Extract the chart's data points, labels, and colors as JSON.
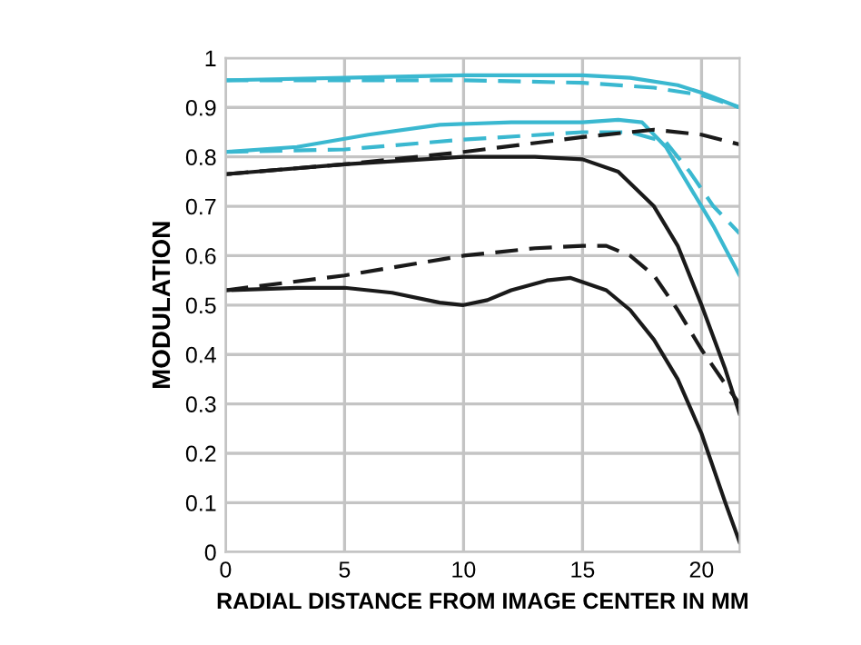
{
  "chart_data": {
    "type": "line",
    "xlabel": "RADIAL DISTANCE FROM IMAGE CENTER IN MM",
    "ylabel": "MODULATION",
    "xlim": [
      0,
      21.6
    ],
    "ylim": [
      0,
      1
    ],
    "xticks": [
      0,
      5,
      10,
      15,
      20
    ],
    "yticks": [
      0,
      0.1,
      0.2,
      0.3,
      0.4,
      0.5,
      0.6,
      0.7,
      0.8,
      0.9,
      1
    ],
    "grid": true,
    "marker": "none",
    "series": [
      {
        "color": "#3ab8d0",
        "line_style": "solid",
        "x": [
          0,
          5,
          10,
          15,
          17,
          19,
          20,
          21.6
        ],
        "values": [
          0.955,
          0.96,
          0.965,
          0.965,
          0.96,
          0.945,
          0.93,
          0.9
        ]
      },
      {
        "color": "#3ab8d0",
        "line_style": "dashed",
        "x": [
          0,
          5,
          10,
          15,
          18,
          20,
          21.6
        ],
        "values": [
          0.955,
          0.955,
          0.955,
          0.95,
          0.94,
          0.925,
          0.9
        ]
      },
      {
        "color": "#3ab8d0",
        "line_style": "solid",
        "x": [
          0,
          3,
          6,
          9,
          12,
          15,
          16.5,
          17.5,
          18.5,
          19.5,
          20.5,
          21.6
        ],
        "values": [
          0.81,
          0.82,
          0.845,
          0.865,
          0.87,
          0.87,
          0.875,
          0.87,
          0.82,
          0.74,
          0.66,
          0.56
        ]
      },
      {
        "color": "#3ab8d0",
        "line_style": "dashed",
        "x": [
          0,
          5,
          10,
          15,
          17,
          18.5,
          19.5,
          20.5,
          21.6
        ],
        "values": [
          0.81,
          0.815,
          0.835,
          0.85,
          0.85,
          0.83,
          0.77,
          0.7,
          0.645
        ]
      },
      {
        "color": "#1a1a1a",
        "line_style": "dashed",
        "x": [
          0,
          5,
          10,
          15,
          18,
          20,
          21.6
        ],
        "values": [
          0.765,
          0.785,
          0.81,
          0.84,
          0.855,
          0.845,
          0.825
        ]
      },
      {
        "color": "#1a1a1a",
        "line_style": "solid",
        "x": [
          0,
          5,
          10,
          13,
          15,
          16.5,
          18,
          19,
          20,
          21,
          21.6
        ],
        "values": [
          0.765,
          0.785,
          0.8,
          0.8,
          0.795,
          0.77,
          0.7,
          0.62,
          0.5,
          0.37,
          0.28
        ]
      },
      {
        "color": "#1a1a1a",
        "line_style": "dashed",
        "x": [
          0,
          5,
          10,
          13,
          15,
          16,
          17,
          18,
          19,
          20,
          21,
          21.6
        ],
        "values": [
          0.53,
          0.56,
          0.6,
          0.615,
          0.62,
          0.62,
          0.6,
          0.56,
          0.49,
          0.41,
          0.34,
          0.3
        ]
      },
      {
        "color": "#1a1a1a",
        "line_style": "solid",
        "x": [
          0,
          3,
          5,
          7,
          9,
          10,
          11,
          12,
          13.5,
          14.5,
          16,
          17,
          18,
          19,
          20,
          21,
          21.6
        ],
        "values": [
          0.53,
          0.535,
          0.535,
          0.525,
          0.505,
          0.5,
          0.51,
          0.53,
          0.55,
          0.555,
          0.53,
          0.49,
          0.43,
          0.35,
          0.24,
          0.1,
          0.02
        ]
      }
    ]
  }
}
